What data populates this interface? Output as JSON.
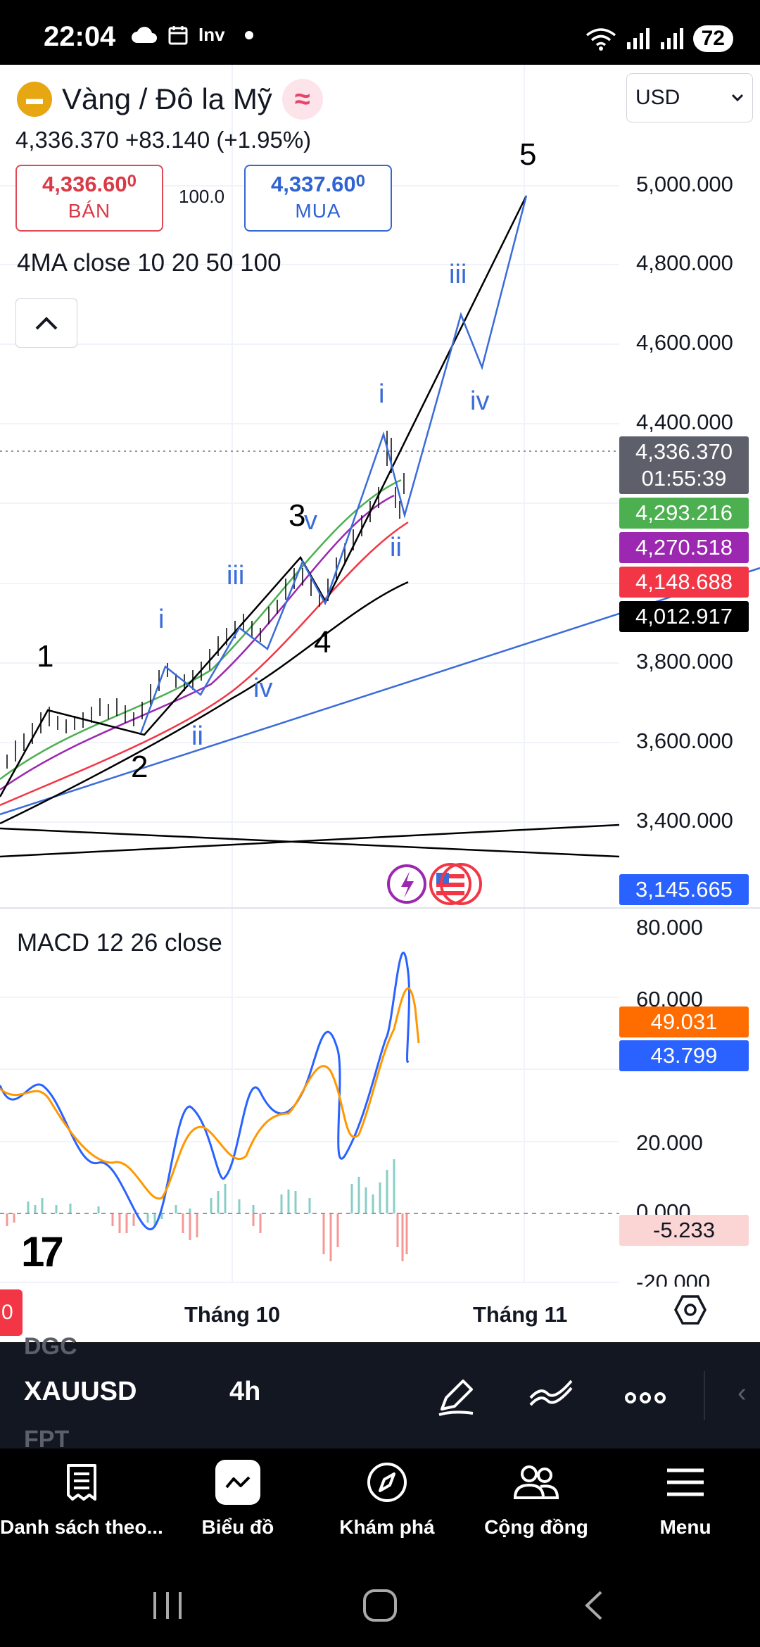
{
  "status_bar": {
    "time": "22:04",
    "carrier_label": "Inv",
    "battery": "72"
  },
  "header": {
    "symbol_title": "Vàng / Đô la Mỹ",
    "price_change": "4,336.370  +83.140 (+1.95%)",
    "sell_price": "4,336.60",
    "sell_price_small": "0",
    "sell_label": "BÁN",
    "spread": "100.0",
    "buy_price": "4,337.60",
    "buy_price_small": "0",
    "buy_label": "MUA",
    "ma_indicator": "4MA close 10 20 50 100",
    "currency": "USD"
  },
  "price_axis": {
    "labels": [
      "5,000.000",
      "4,800.000",
      "4,600.000",
      "4,400.000",
      "3,800.000",
      "3,600.000",
      "3,400.000"
    ],
    "current_price": "4,336.370",
    "countdown": "01:55:39",
    "ma_tags": [
      {
        "value": "4,293.216",
        "color": "#4caf50"
      },
      {
        "value": "4,270.518",
        "color": "#9c27b0"
      },
      {
        "value": "4,148.688",
        "color": "#f23645"
      },
      {
        "value": "4,012.917",
        "color": "#000000"
      }
    ],
    "line_tag": "3,145.665"
  },
  "wave_labels": {
    "main": [
      "1",
      "2",
      "3",
      "4",
      "5"
    ],
    "sub_a": [
      "i",
      "ii",
      "iii",
      "iv",
      "v"
    ],
    "sub_b": [
      "i",
      "ii",
      "iii",
      "iv"
    ]
  },
  "macd": {
    "label": "MACD 12 26 close",
    "axis_labels": [
      "80.000",
      "60.000",
      "20.000",
      "0.000",
      "-20.000"
    ],
    "signal_tag": "49.031",
    "macd_tag": "43.799",
    "hist_tag": "-5.233",
    "colors": {
      "macd": "#2962ff",
      "signal": "#ff6d00",
      "hist_up": "#26a69a",
      "hist_down": "#ef5350"
    }
  },
  "time_axis": {
    "labels": [
      "Tháng 10",
      "Tháng 11"
    ],
    "red_tab": "0"
  },
  "toolbar": {
    "ghost_top": "DGC",
    "symbol": "XAUUSD",
    "interval": "4h",
    "ghost_bottom": "FPT"
  },
  "bottom_nav": {
    "items": [
      {
        "label": "Danh sách theo...",
        "icon": "watchlist-icon"
      },
      {
        "label": "Biểu đồ",
        "icon": "chart-icon"
      },
      {
        "label": "Khám phá",
        "icon": "compass-icon"
      },
      {
        "label": "Cộng đồng",
        "icon": "community-icon"
      },
      {
        "label": "Menu",
        "icon": "menu-icon"
      }
    ]
  }
}
